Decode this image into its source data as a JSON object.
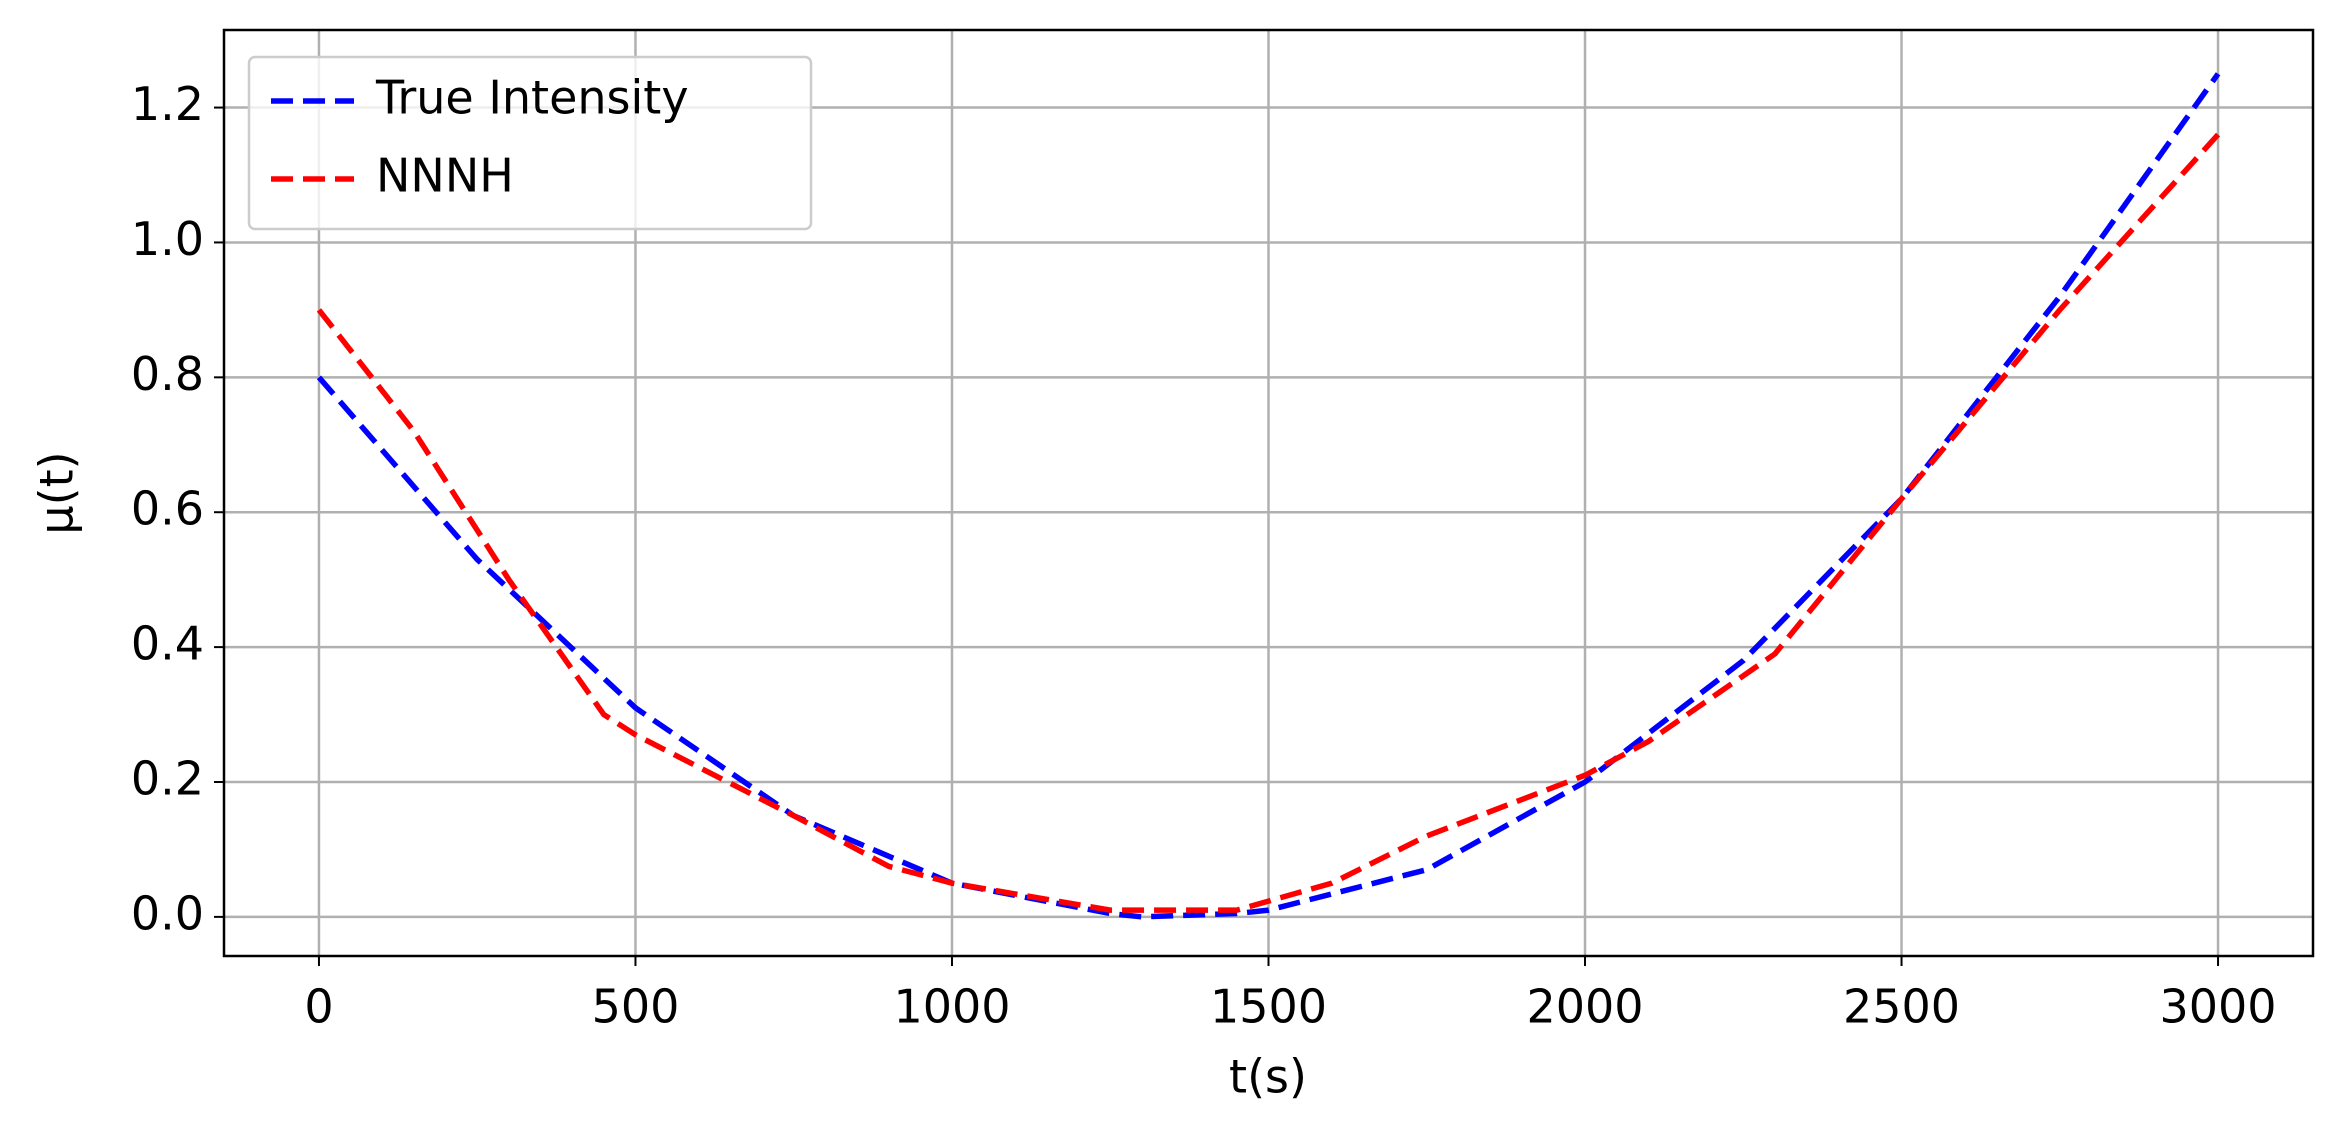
{
  "chart_data": {
    "type": "line",
    "xlabel": "t(s)",
    "ylabel": "μ(t)",
    "xlim": [
      -150,
      3150
    ],
    "ylim": [
      -0.058,
      1.315
    ],
    "xticks": [
      0,
      500,
      1000,
      1500,
      2000,
      2500,
      3000
    ],
    "yticks": [
      {
        "value": 0,
        "label": "0.0"
      },
      0.2,
      0.4,
      0.6,
      0.8,
      {
        "value": 1,
        "label": "1.0"
      },
      1.2
    ],
    "grid": true,
    "legend": "upper left",
    "linestyle": "dashed",
    "series": [
      {
        "name": "True Intensity",
        "color": "#0000ff",
        "x": [
          0,
          250,
          500,
          750,
          1000,
          1250,
          1300,
          1450,
          1500,
          1750,
          2000,
          2250,
          2500,
          2750,
          3000
        ],
        "values": [
          0.8,
          0.53,
          0.31,
          0.15,
          0.05,
          0.005,
          0.0,
          0.005,
          0.01,
          0.07,
          0.2,
          0.38,
          0.62,
          0.92,
          1.25
        ]
      },
      {
        "name": "NNNH",
        "color": "#ff0000",
        "x": [
          0,
          150,
          300,
          450,
          500,
          750,
          900,
          1000,
          1250,
          1450,
          1600,
          1750,
          2000,
          2100,
          2300,
          2500,
          2750,
          3000
        ],
        "values": [
          0.9,
          0.72,
          0.5,
          0.3,
          0.27,
          0.15,
          0.075,
          0.05,
          0.01,
          0.01,
          0.05,
          0.12,
          0.21,
          0.26,
          0.39,
          0.62,
          0.9,
          1.16
        ]
      }
    ]
  }
}
